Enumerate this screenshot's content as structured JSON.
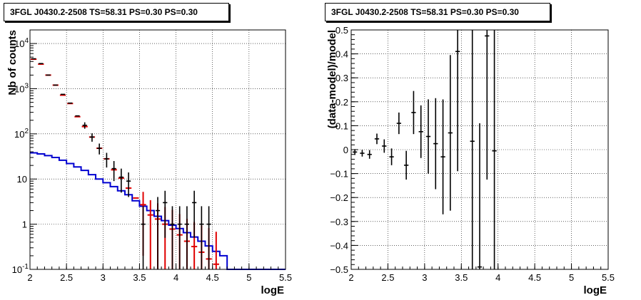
{
  "chart_data": [
    {
      "type": "step-histogram",
      "title": "3FGL J0430.2-2508 TS=58.31 PS=0.30 PS=0.30",
      "xlabel": "logE",
      "ylabel": "Nb of counts",
      "xlim": [
        2,
        5.5
      ],
      "ylim": [
        0.1,
        20000
      ],
      "yscale": "log",
      "grid": true,
      "x_ticks": [
        "2",
        "2.5",
        "3",
        "3.5",
        "4",
        "4.5",
        "5",
        "5.5"
      ],
      "y_ticks": [
        {
          "value": 0.1,
          "label": "10",
          "sup": "-1"
        },
        {
          "value": 1,
          "label": "1",
          "sup": ""
        },
        {
          "value": 10,
          "label": "10",
          "sup": ""
        },
        {
          "value": 100,
          "label": "10",
          "sup": "2"
        },
        {
          "value": 1000,
          "label": "10",
          "sup": "3"
        },
        {
          "value": 10000,
          "label": "10",
          "sup": "4"
        }
      ],
      "bin_width": 0.1,
      "x": [
        2.05,
        2.15,
        2.25,
        2.35,
        2.45,
        2.55,
        2.65,
        2.75,
        2.85,
        2.95,
        3.05,
        3.15,
        3.25,
        3.35,
        3.45,
        3.55,
        3.65,
        3.75,
        3.85,
        3.95,
        4.05,
        4.15,
        4.25,
        4.35,
        4.45,
        4.55,
        4.65,
        4.75,
        4.85,
        4.95,
        5.05,
        5.15,
        5.25,
        5.35,
        5.45
      ],
      "series": [
        {
          "name": "",
          "kind": "model-total",
          "color": "#e00000",
          "values": [
            4500,
            3500,
            2000,
            1200,
            720,
            470,
            240,
            145,
            85,
            48,
            28,
            16,
            10.5,
            6.3,
            3.8,
            2.7,
            1.6,
            1.3,
            1.0,
            0.78,
            0.58,
            0.42,
            0.32,
            0.24,
            0.17,
            0.13,
            0.1,
            0.1,
            0.1,
            0.1,
            0.1,
            0.1,
            0.1,
            0.1,
            0.1
          ],
          "err": [
            0,
            0,
            0,
            0,
            0,
            0,
            0,
            0,
            0,
            0,
            0,
            0,
            0,
            0,
            0,
            2.5,
            1.8,
            1.6,
            1.4,
            1.3,
            1.1,
            0.9,
            0.8,
            0.7,
            0.65,
            0.55,
            0.5,
            0,
            0,
            0,
            0,
            0,
            0,
            0,
            0
          ]
        },
        {
          "name": "",
          "kind": "component",
          "color": "#0000d0",
          "values": [
            38,
            36,
            33,
            30,
            26,
            22,
            18.5,
            15.5,
            12.5,
            10,
            8.3,
            6.8,
            5.5,
            4.5,
            3.3,
            2.5,
            2.0,
            1.5,
            1.2,
            0.95,
            0.8,
            0.65,
            0.52,
            0.42,
            0.33,
            0.25,
            0.2,
            0.1,
            0.1,
            0.1,
            0.1,
            0.1,
            0.1,
            0.1,
            0.1
          ]
        },
        {
          "name": "",
          "kind": "data",
          "color": "#000000",
          "values": [
            4600,
            3600,
            2000,
            1200,
            750,
            480,
            250,
            155,
            85,
            48,
            28,
            17,
            11,
            9,
            null,
            1,
            null,
            2,
            3,
            1,
            1,
            1,
            3,
            1,
            1,
            null,
            null,
            null,
            null,
            null,
            null,
            null,
            null,
            null,
            null
          ],
          "err": [
            0,
            0,
            0,
            0,
            0,
            0,
            0,
            25,
            18,
            13,
            10,
            8,
            6,
            5,
            0,
            1.5,
            0,
            2,
            2.5,
            1.5,
            1.5,
            1.5,
            2.5,
            1.5,
            1.5,
            0,
            0,
            0,
            0,
            0,
            0,
            0,
            0,
            0,
            0
          ]
        }
      ]
    },
    {
      "type": "scatter-errorbar",
      "title": "3FGL J0430.2-2508 TS=58.31 PS=0.30 PS=0.30",
      "xlabel": "logE",
      "ylabel": "(data-model)/model",
      "xlim": [
        2,
        5.5
      ],
      "ylim": [
        -0.5,
        0.5
      ],
      "grid": true,
      "x_ticks": [
        "2",
        "2.5",
        "3",
        "3.5",
        "4",
        "4.5",
        "5",
        "5.5"
      ],
      "y_ticks": [
        "−0.5",
        "−0.4",
        "−0.3",
        "−0.2",
        "−0.1",
        "0",
        "0.1",
        "0.2",
        "0.3",
        "0.4",
        "0.5"
      ],
      "bin_width": 0.1,
      "points": [
        {
          "x": 2.05,
          "y": -0.01,
          "err": 0.012
        },
        {
          "x": 2.15,
          "y": -0.015,
          "err": 0.014
        },
        {
          "x": 2.25,
          "y": -0.02,
          "err": 0.018
        },
        {
          "x": 2.35,
          "y": 0.045,
          "err": 0.022
        },
        {
          "x": 2.45,
          "y": 0.015,
          "err": 0.028
        },
        {
          "x": 2.55,
          "y": -0.03,
          "err": 0.035
        },
        {
          "x": 2.65,
          "y": 0.11,
          "err": 0.045
        },
        {
          "x": 2.75,
          "y": -0.065,
          "err": 0.06
        },
        {
          "x": 2.85,
          "y": 0.155,
          "err": 0.09
        },
        {
          "x": 2.95,
          "y": 0.075,
          "err": 0.11
        },
        {
          "x": 3.05,
          "y": 0.055,
          "err": 0.155
        },
        {
          "x": 3.15,
          "y": 0.025,
          "err": 0.19
        },
        {
          "x": 3.25,
          "y": -0.03,
          "err": 0.24
        },
        {
          "x": 3.35,
          "y": 0.07,
          "err": 0.325
        },
        {
          "x": 3.45,
          "y": 0.41,
          "err": 0.5
        },
        {
          "x": 3.65,
          "y": 0.035,
          "err": 0.6
        },
        {
          "x": 3.75,
          "y": -0.49,
          "err": 0.6
        },
        {
          "x": 3.85,
          "y": 0.475,
          "err": 0.6
        },
        {
          "x": 3.95,
          "y": -0.005,
          "err": 0.6
        }
      ]
    }
  ]
}
